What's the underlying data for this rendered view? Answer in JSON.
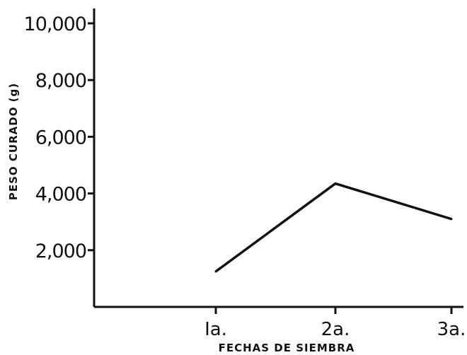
{
  "chart_data": {
    "type": "line",
    "xlabel": "FECHAS DE SIEMBRA",
    "ylabel": "PESO CURADO (g)",
    "categories": [
      "Ia.",
      "2a.",
      "3a."
    ],
    "series": [
      {
        "values": [
          1250,
          4350,
          3100
        ]
      }
    ],
    "yticks": [
      "2,000",
      "4,000",
      "6,000",
      "8,000",
      "10,000"
    ],
    "ytick_values": [
      2000,
      4000,
      6000,
      8000,
      10000
    ],
    "ylim": [
      0,
      10000
    ],
    "grid": false,
    "line_color": "#111111"
  }
}
